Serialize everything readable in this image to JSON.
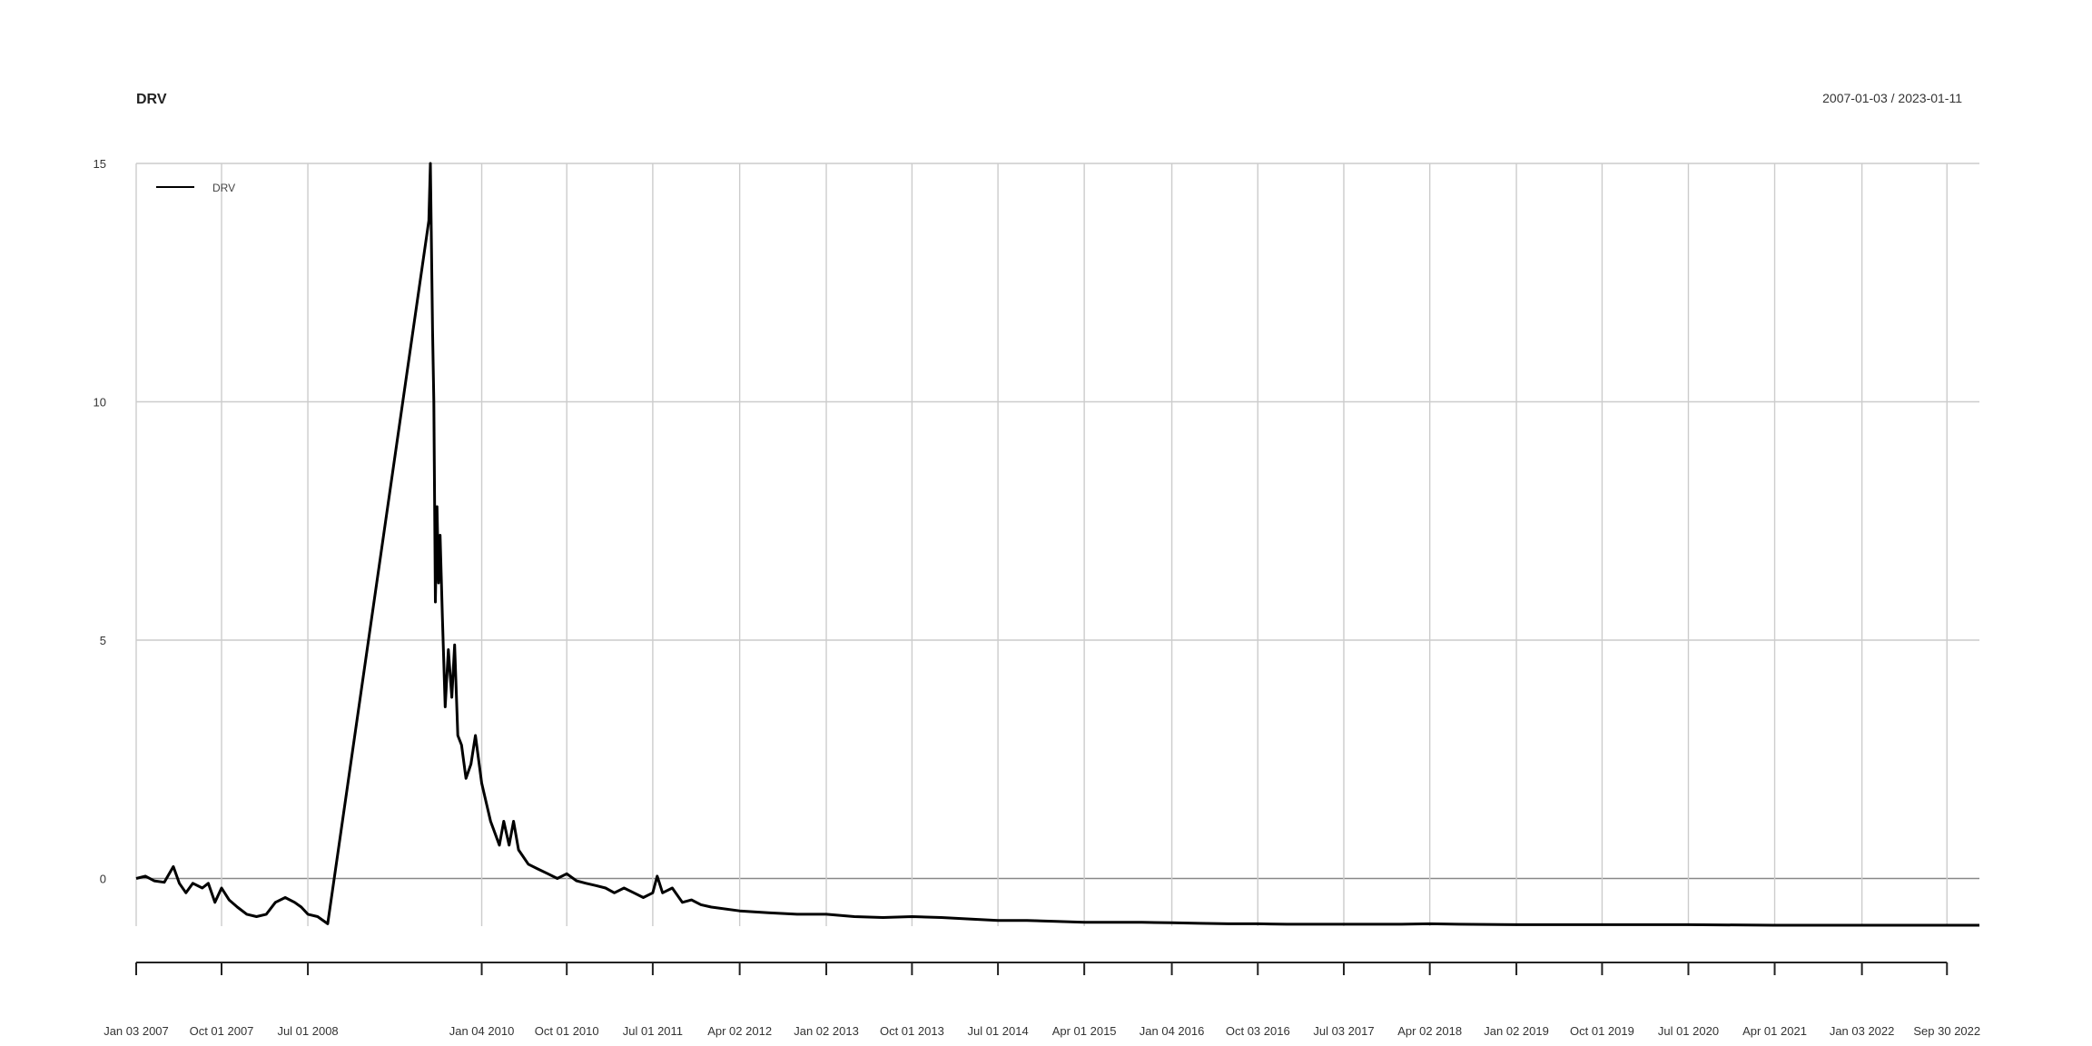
{
  "chart_data": {
    "type": "line",
    "title": "DRV",
    "date_range": "2007-01-03 / 2023-01-11",
    "xlim": [
      "2007-01-03",
      "2023-01-11"
    ],
    "ylim": [
      -1.0,
      15.0
    ],
    "y_ticks": [
      0,
      5,
      10,
      15
    ],
    "y_tick_labels": [
      "0",
      "5",
      "10",
      "15"
    ],
    "grid": true,
    "legend": {
      "position": "top-left",
      "entries": [
        "DRV"
      ]
    },
    "x_ticks": [
      {
        "date": "2007-01-03",
        "label": "Jan 03 2007"
      },
      {
        "date": "2007-10-01",
        "label": "Oct 01 2007"
      },
      {
        "date": "2008-07-01",
        "label": "Jul 01 2008"
      },
      {
        "date": "2010-01-04",
        "label": "Jan 04 2010"
      },
      {
        "date": "2010-10-01",
        "label": "Oct 01 2010"
      },
      {
        "date": "2011-07-01",
        "label": "Jul 01 2011"
      },
      {
        "date": "2012-04-02",
        "label": "Apr 02 2012"
      },
      {
        "date": "2013-01-02",
        "label": "Jan 02 2013"
      },
      {
        "date": "2013-10-01",
        "label": "Oct 01 2013"
      },
      {
        "date": "2014-07-01",
        "label": "Jul 01 2014"
      },
      {
        "date": "2015-04-01",
        "label": "Apr 01 2015"
      },
      {
        "date": "2016-01-04",
        "label": "Jan 04 2016"
      },
      {
        "date": "2016-10-03",
        "label": "Oct 03 2016"
      },
      {
        "date": "2017-07-03",
        "label": "Jul 03 2017"
      },
      {
        "date": "2018-04-02",
        "label": "Apr 02 2018"
      },
      {
        "date": "2019-01-02",
        "label": "Jan 02 2019"
      },
      {
        "date": "2019-10-01",
        "label": "Oct 01 2019"
      },
      {
        "date": "2020-07-01",
        "label": "Jul 01 2020"
      },
      {
        "date": "2021-04-01",
        "label": "Apr 01 2021"
      },
      {
        "date": "2022-01-03",
        "label": "Jan 03 2022"
      },
      {
        "date": "2022-09-30",
        "label": "Sep 30 2022"
      }
    ],
    "series": [
      {
        "name": "DRV",
        "color": "#000000",
        "points": [
          {
            "x": "2007-01-03",
            "y": 0.0
          },
          {
            "x": "2007-02-01",
            "y": 0.05
          },
          {
            "x": "2007-03-01",
            "y": -0.05
          },
          {
            "x": "2007-04-02",
            "y": -0.08
          },
          {
            "x": "2007-05-01",
            "y": 0.25
          },
          {
            "x": "2007-05-20",
            "y": -0.1
          },
          {
            "x": "2007-06-10",
            "y": -0.3
          },
          {
            "x": "2007-07-02",
            "y": -0.1
          },
          {
            "x": "2007-08-01",
            "y": -0.2
          },
          {
            "x": "2007-08-20",
            "y": -0.1
          },
          {
            "x": "2007-09-10",
            "y": -0.5
          },
          {
            "x": "2007-10-01",
            "y": -0.2
          },
          {
            "x": "2007-10-25",
            "y": -0.45
          },
          {
            "x": "2007-11-20",
            "y": -0.6
          },
          {
            "x": "2007-12-20",
            "y": -0.75
          },
          {
            "x": "2008-01-20",
            "y": -0.8
          },
          {
            "x": "2008-02-20",
            "y": -0.75
          },
          {
            "x": "2008-03-20",
            "y": -0.5
          },
          {
            "x": "2008-04-20",
            "y": -0.4
          },
          {
            "x": "2008-05-20",
            "y": -0.5
          },
          {
            "x": "2008-06-10",
            "y": -0.6
          },
          {
            "x": "2008-07-01",
            "y": -0.75
          },
          {
            "x": "2008-08-01",
            "y": -0.8
          },
          {
            "x": "2008-09-02",
            "y": -0.95
          },
          {
            "x": "2009-07-20",
            "y": 13.8
          },
          {
            "x": "2009-07-25",
            "y": 15.0
          },
          {
            "x": "2009-08-01",
            "y": 11.5
          },
          {
            "x": "2009-08-05",
            "y": 10.0
          },
          {
            "x": "2009-08-10",
            "y": 5.8
          },
          {
            "x": "2009-08-15",
            "y": 7.8
          },
          {
            "x": "2009-08-20",
            "y": 6.2
          },
          {
            "x": "2009-08-25",
            "y": 7.2
          },
          {
            "x": "2009-09-01",
            "y": 5.5
          },
          {
            "x": "2009-09-10",
            "y": 3.6
          },
          {
            "x": "2009-09-20",
            "y": 4.8
          },
          {
            "x": "2009-10-01",
            "y": 3.8
          },
          {
            "x": "2009-10-10",
            "y": 4.9
          },
          {
            "x": "2009-10-20",
            "y": 3.0
          },
          {
            "x": "2009-11-01",
            "y": 2.8
          },
          {
            "x": "2009-11-15",
            "y": 2.1
          },
          {
            "x": "2009-12-01",
            "y": 2.4
          },
          {
            "x": "2009-12-15",
            "y": 3.0
          },
          {
            "x": "2010-01-04",
            "y": 2.0
          },
          {
            "x": "2010-02-01",
            "y": 1.2
          },
          {
            "x": "2010-03-01",
            "y": 0.7
          },
          {
            "x": "2010-03-15",
            "y": 1.2
          },
          {
            "x": "2010-04-01",
            "y": 0.7
          },
          {
            "x": "2010-04-15",
            "y": 1.2
          },
          {
            "x": "2010-05-01",
            "y": 0.6
          },
          {
            "x": "2010-06-01",
            "y": 0.3
          },
          {
            "x": "2010-07-01",
            "y": 0.2
          },
          {
            "x": "2010-08-02",
            "y": 0.1
          },
          {
            "x": "2010-09-01",
            "y": 0.0
          },
          {
            "x": "2010-10-01",
            "y": 0.1
          },
          {
            "x": "2010-11-01",
            "y": -0.05
          },
          {
            "x": "2010-12-01",
            "y": -0.1
          },
          {
            "x": "2011-01-03",
            "y": -0.15
          },
          {
            "x": "2011-02-01",
            "y": -0.2
          },
          {
            "x": "2011-03-01",
            "y": -0.3
          },
          {
            "x": "2011-04-01",
            "y": -0.2
          },
          {
            "x": "2011-05-02",
            "y": -0.3
          },
          {
            "x": "2011-06-01",
            "y": -0.4
          },
          {
            "x": "2011-07-01",
            "y": -0.3
          },
          {
            "x": "2011-07-15",
            "y": 0.05
          },
          {
            "x": "2011-08-01",
            "y": -0.3
          },
          {
            "x": "2011-09-01",
            "y": -0.2
          },
          {
            "x": "2011-10-03",
            "y": -0.5
          },
          {
            "x": "2011-11-01",
            "y": -0.45
          },
          {
            "x": "2011-12-01",
            "y": -0.55
          },
          {
            "x": "2012-01-03",
            "y": -0.6
          },
          {
            "x": "2012-04-02",
            "y": -0.68
          },
          {
            "x": "2012-07-02",
            "y": -0.72
          },
          {
            "x": "2012-10-01",
            "y": -0.75
          },
          {
            "x": "2013-01-02",
            "y": -0.75
          },
          {
            "x": "2013-04-01",
            "y": -0.8
          },
          {
            "x": "2013-07-01",
            "y": -0.82
          },
          {
            "x": "2013-10-01",
            "y": -0.8
          },
          {
            "x": "2014-01-02",
            "y": -0.82
          },
          {
            "x": "2014-04-01",
            "y": -0.85
          },
          {
            "x": "2014-07-01",
            "y": -0.88
          },
          {
            "x": "2014-10-01",
            "y": -0.88
          },
          {
            "x": "2015-01-02",
            "y": -0.9
          },
          {
            "x": "2015-04-01",
            "y": -0.92
          },
          {
            "x": "2015-07-01",
            "y": -0.92
          },
          {
            "x": "2015-10-01",
            "y": -0.92
          },
          {
            "x": "2016-01-04",
            "y": -0.93
          },
          {
            "x": "2016-04-01",
            "y": -0.94
          },
          {
            "x": "2016-07-01",
            "y": -0.95
          },
          {
            "x": "2016-10-03",
            "y": -0.95
          },
          {
            "x": "2017-01-03",
            "y": -0.96
          },
          {
            "x": "2017-07-03",
            "y": -0.96
          },
          {
            "x": "2018-01-02",
            "y": -0.96
          },
          {
            "x": "2018-04-02",
            "y": -0.95
          },
          {
            "x": "2018-07-02",
            "y": -0.96
          },
          {
            "x": "2019-01-02",
            "y": -0.97
          },
          {
            "x": "2019-10-01",
            "y": -0.97
          },
          {
            "x": "2020-07-01",
            "y": -0.97
          },
          {
            "x": "2021-04-01",
            "y": -0.98
          },
          {
            "x": "2022-01-03",
            "y": -0.98
          },
          {
            "x": "2022-09-30",
            "y": -0.98
          },
          {
            "x": "2023-01-11",
            "y": -0.98
          }
        ]
      }
    ]
  }
}
